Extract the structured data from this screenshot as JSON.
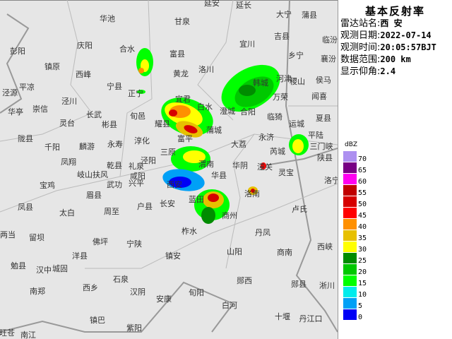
{
  "panel": {
    "title": "基本反射率",
    "rows": [
      {
        "label": "雷达站名:",
        "value": "西 安"
      },
      {
        "label": "观测日期:",
        "value": "2022-07-14"
      },
      {
        "label": "观测时间:",
        "value": "20:05:57BJT"
      },
      {
        "label": "数据范围:",
        "value": "200 km"
      },
      {
        "label": "显示仰角:",
        "value": "2.4"
      }
    ]
  },
  "legend": {
    "unit": "dBZ",
    "items": [
      {
        "value": "70",
        "color": "#ad90f0"
      },
      {
        "value": "65",
        "color": "#780084"
      },
      {
        "value": "60",
        "color": "#ff00f0"
      },
      {
        "value": "55",
        "color": "#c00000"
      },
      {
        "value": "50",
        "color": "#d60000"
      },
      {
        "value": "45",
        "color": "#ff0000"
      },
      {
        "value": "40",
        "color": "#ff9000"
      },
      {
        "value": "35",
        "color": "#e7c000"
      },
      {
        "value": "30",
        "color": "#ffff00"
      },
      {
        "value": "25",
        "color": "#008c00"
      },
      {
        "value": "20",
        "color": "#00c800"
      },
      {
        "value": "15",
        "color": "#00ff00"
      },
      {
        "value": "10",
        "color": "#00ecec"
      },
      {
        "value": "5",
        "color": "#00a0f6"
      },
      {
        "value": "0",
        "color": "#0000f6"
      }
    ]
  },
  "map": {
    "cities": [
      "延安",
      "延长",
      "甘泉",
      "大宁",
      "蒲县",
      "吉县",
      "宜川",
      "富县",
      "临汾",
      "乡宁",
      "襄汾",
      "洛川",
      "黄龙",
      "河津",
      "稷山",
      "侯马",
      "韩城",
      "万荣",
      "闻喜",
      "宜君",
      "白水",
      "澄城",
      "合阳",
      "耀县",
      "蒲城",
      "富平",
      "临猗",
      "夏县",
      "运城",
      "永济",
      "大荔",
      "平陆",
      "芮城",
      "三门峡",
      "陕县",
      "三原",
      "渭南",
      "华阴",
      "潼关",
      "华县",
      "灵宝",
      "洛宁",
      "西安",
      "洛南",
      "长安",
      "蓝田",
      "卢氏",
      "商州",
      "柞水",
      "丹凤",
      "山阳",
      "商南",
      "西峡",
      "镇安",
      "郧西",
      "郧县",
      "淅川",
      "旬阳",
      "白河",
      "十堰",
      "丹江口",
      "华池",
      "庆阳",
      "合水",
      "彭阳",
      "镇原",
      "西峰",
      "宁县",
      "正宁",
      "平凉",
      "泾源",
      "泾川",
      "华亭",
      "崇信",
      "长武",
      "灵台",
      "彬县",
      "旬邑",
      "陇县",
      "千阳",
      "麟游",
      "永寿",
      "淳化",
      "凤翔",
      "宝鸡",
      "岐山",
      "扶风",
      "乾县",
      "礼泉",
      "泾阳",
      "咸阳",
      "武功",
      "兴平",
      "眉县",
      "凤县",
      "太白",
      "周至",
      "户县",
      "两当",
      "留坝",
      "佛坪",
      "宁陕",
      "洋县",
      "勉县",
      "汉中",
      "城固",
      "石泉",
      "西乡",
      "汉阴",
      "安康",
      "南郑",
      "镇巴",
      "紫阳",
      "旺苍",
      "南江"
    ]
  }
}
